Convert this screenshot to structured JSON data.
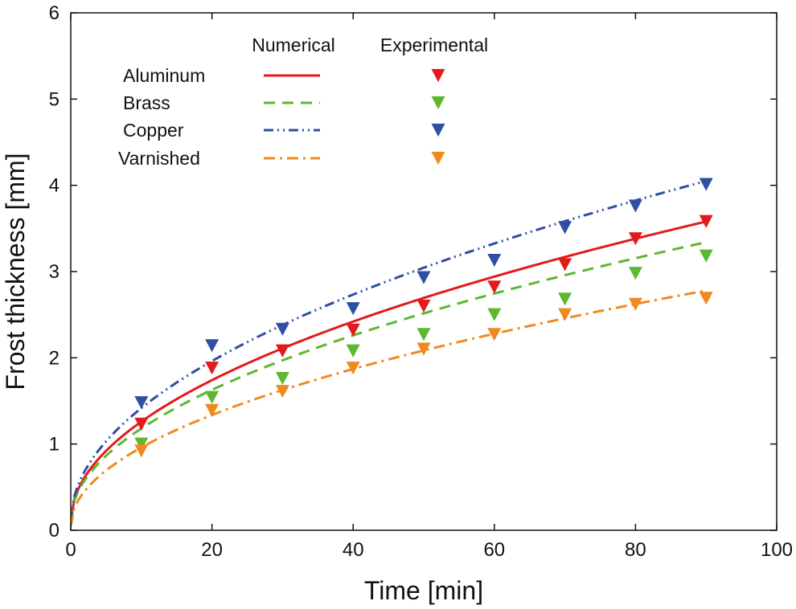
{
  "chart_data": {
    "type": "line",
    "xlabel": "Time [min]",
    "ylabel": "Frost thickness [mm]",
    "xlim": [
      0,
      100
    ],
    "ylim": [
      0,
      6
    ],
    "xticks": [
      0,
      20,
      40,
      60,
      80,
      100
    ],
    "yticks": [
      0,
      1,
      2,
      3,
      4,
      5,
      6
    ],
    "grid": false,
    "legend": {
      "placement": "top-left",
      "numerical_header": "Numerical",
      "experimental_header": "Experimental"
    },
    "series": [
      {
        "name": "Aluminum",
        "color": "#e31a1c",
        "dash": "solid",
        "model_at_90": 3.58,
        "model_intercept": 0.1,
        "exp_x": [
          10,
          20,
          30,
          40,
          50,
          60,
          70,
          80,
          90
        ],
        "exp_y": [
          1.23,
          1.88,
          2.08,
          2.32,
          2.6,
          2.82,
          3.08,
          3.38,
          3.58
        ]
      },
      {
        "name": "Brass",
        "color": "#5cb82e",
        "dash": "dashed",
        "model_at_90": 3.34,
        "model_intercept": 0.1,
        "exp_x": [
          10,
          20,
          30,
          40,
          50,
          60,
          70,
          80,
          90
        ],
        "exp_y": [
          1.0,
          1.54,
          1.76,
          2.08,
          2.27,
          2.5,
          2.68,
          2.98,
          3.18
        ]
      },
      {
        "name": "Copper",
        "color": "#2e4fa3",
        "dash": "dash-dot-dot",
        "model_at_90": 4.05,
        "model_intercept": 0.1,
        "exp_x": [
          10,
          20,
          30,
          40,
          50,
          60,
          70,
          80,
          90
        ],
        "exp_y": [
          1.48,
          2.14,
          2.33,
          2.57,
          2.93,
          3.13,
          3.51,
          3.76,
          4.01
        ]
      },
      {
        "name": "Varnished",
        "color": "#f08a1f",
        "dash": "dash-dot",
        "model_at_90": 2.78,
        "model_intercept": 0.05,
        "exp_x": [
          10,
          20,
          30,
          40,
          50,
          60,
          70,
          80,
          90
        ],
        "exp_y": [
          0.92,
          1.39,
          1.61,
          1.88,
          2.1,
          2.27,
          2.5,
          2.62,
          2.69
        ]
      }
    ]
  }
}
